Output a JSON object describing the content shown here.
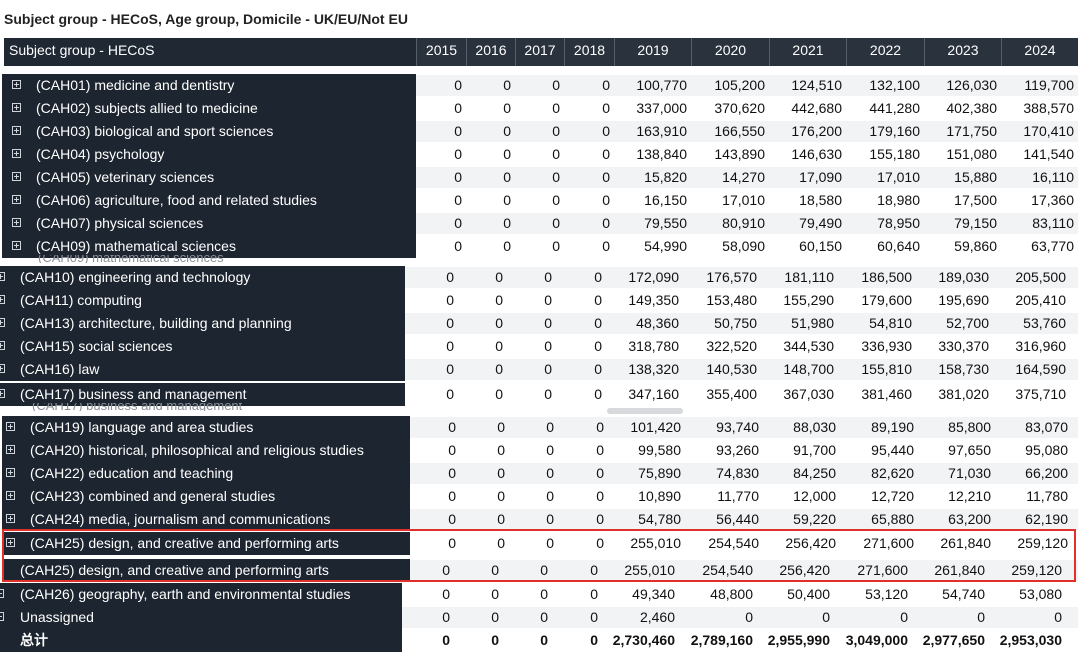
{
  "title": "Subject group - HECoS, Age group, Domicile - UK/EU/Not EU",
  "header": {
    "name_label": "Subject group - HECoS",
    "years": [
      "2015",
      "2016",
      "2017",
      "2018",
      "2019",
      "2020",
      "2021",
      "2022",
      "2023",
      "2024"
    ]
  },
  "rows": [
    {
      "label": "(CAH01) medicine and dentistry",
      "values": [
        "0",
        "0",
        "0",
        "0",
        "100,770",
        "105,200",
        "124,510",
        "132,100",
        "126,030",
        "119,700"
      ]
    },
    {
      "label": "(CAH02) subjects allied to medicine",
      "values": [
        "0",
        "0",
        "0",
        "0",
        "337,000",
        "370,620",
        "442,680",
        "441,280",
        "402,380",
        "388,570"
      ]
    },
    {
      "label": "(CAH03) biological and sport sciences",
      "values": [
        "0",
        "0",
        "0",
        "0",
        "163,910",
        "166,550",
        "176,200",
        "179,160",
        "171,750",
        "170,410"
      ]
    },
    {
      "label": "(CAH04) psychology",
      "values": [
        "0",
        "0",
        "0",
        "0",
        "138,840",
        "143,890",
        "146,630",
        "155,180",
        "151,080",
        "141,540"
      ]
    },
    {
      "label": "(CAH05) veterinary sciences",
      "values": [
        "0",
        "0",
        "0",
        "0",
        "15,820",
        "14,270",
        "17,090",
        "17,010",
        "15,880",
        "16,110"
      ]
    },
    {
      "label": "(CAH06) agriculture, food and related studies",
      "values": [
        "0",
        "0",
        "0",
        "0",
        "16,150",
        "17,010",
        "18,580",
        "18,980",
        "17,500",
        "17,360"
      ]
    },
    {
      "label": "(CAH07) physical sciences",
      "values": [
        "0",
        "0",
        "0",
        "0",
        "79,550",
        "80,910",
        "79,490",
        "78,950",
        "79,150",
        "83,110"
      ]
    },
    {
      "label": "(CAH09) mathematical sciences",
      "values": [
        "0",
        "0",
        "0",
        "0",
        "54,990",
        "58,090",
        "60,150",
        "60,640",
        "59,860",
        "63,770"
      ]
    },
    {
      "label": "(CAH10) engineering and technology",
      "values": [
        "0",
        "0",
        "0",
        "0",
        "172,090",
        "176,570",
        "181,110",
        "186,500",
        "189,030",
        "205,500"
      ]
    },
    {
      "label": "(CAH11) computing",
      "values": [
        "0",
        "0",
        "0",
        "0",
        "149,350",
        "153,480",
        "155,290",
        "179,600",
        "195,690",
        "205,410"
      ]
    },
    {
      "label": "(CAH13) architecture, building and planning",
      "values": [
        "0",
        "0",
        "0",
        "0",
        "48,360",
        "50,750",
        "51,980",
        "54,810",
        "52,700",
        "53,760"
      ]
    },
    {
      "label": "(CAH15) social sciences",
      "values": [
        "0",
        "0",
        "0",
        "0",
        "318,780",
        "322,520",
        "344,530",
        "336,930",
        "330,370",
        "316,960"
      ]
    },
    {
      "label": "(CAH16) law",
      "values": [
        "0",
        "0",
        "0",
        "0",
        "138,320",
        "140,530",
        "148,700",
        "155,810",
        "158,730",
        "164,590"
      ]
    },
    {
      "label": "(CAH17) business and management",
      "values": [
        "0",
        "0",
        "0",
        "0",
        "347,160",
        "355,400",
        "367,030",
        "381,460",
        "381,020",
        "375,710"
      ]
    },
    {
      "label": "(CAH19) language and area studies",
      "values": [
        "0",
        "0",
        "0",
        "0",
        "101,420",
        "93,740",
        "88,030",
        "89,190",
        "85,800",
        "83,070"
      ]
    },
    {
      "label": "(CAH20) historical, philosophical and religious studies",
      "values": [
        "0",
        "0",
        "0",
        "0",
        "99,580",
        "93,260",
        "91,700",
        "95,440",
        "97,650",
        "95,080"
      ]
    },
    {
      "label": "(CAH22) education and teaching",
      "values": [
        "0",
        "0",
        "0",
        "0",
        "75,890",
        "74,830",
        "84,250",
        "82,620",
        "71,030",
        "66,200"
      ]
    },
    {
      "label": "(CAH23) combined and general studies",
      "values": [
        "0",
        "0",
        "0",
        "0",
        "10,890",
        "11,770",
        "12,000",
        "12,720",
        "12,210",
        "11,780"
      ]
    },
    {
      "label": "(CAH24) media, journalism and communications",
      "values": [
        "0",
        "0",
        "0",
        "0",
        "54,780",
        "56,440",
        "59,220",
        "65,880",
        "63,200",
        "62,190"
      ]
    },
    {
      "label": "(CAH25) design, and creative and performing arts",
      "values": [
        "0",
        "0",
        "0",
        "0",
        "255,010",
        "254,540",
        "256,420",
        "271,600",
        "261,840",
        "259,120"
      ]
    },
    {
      "label": "(CAH25) design, and creative and performing arts",
      "values": [
        "0",
        "0",
        "0",
        "0",
        "255,010",
        "254,540",
        "256,420",
        "271,600",
        "261,840",
        "259,120"
      ]
    },
    {
      "label": "(CAH26) geography, earth and environmental studies",
      "values": [
        "0",
        "0",
        "0",
        "0",
        "49,340",
        "48,800",
        "50,400",
        "53,120",
        "54,740",
        "53,080"
      ]
    },
    {
      "label": "Unassigned",
      "values": [
        "0",
        "0",
        "0",
        "0",
        "2,460",
        "0",
        "0",
        "0",
        "0",
        "0"
      ]
    },
    {
      "label": "总计",
      "values": [
        "0",
        "0",
        "0",
        "0",
        "2,730,460",
        "2,789,160",
        "2,955,990",
        "3,049,000",
        "2,977,650",
        "2,953,030"
      ]
    }
  ],
  "ghost_labels": [
    "(CAH09) mathematical sciences",
    "(CAH17) business and management"
  ]
}
